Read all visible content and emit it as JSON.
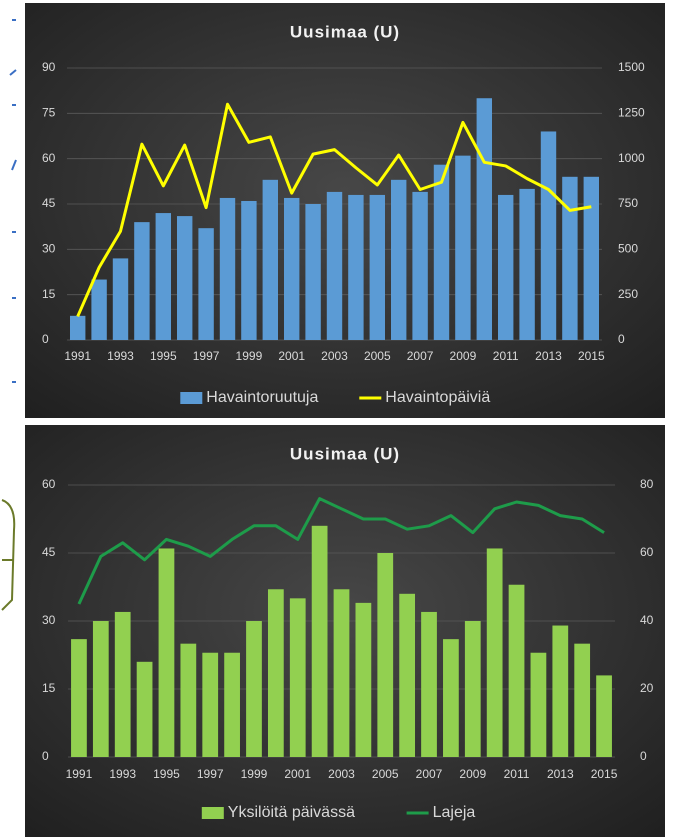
{
  "chart_data": [
    {
      "type": "bar",
      "title": "Uusimaa  (U)",
      "categories": [
        "1991",
        null,
        "1993",
        null,
        "1995",
        null,
        "1997",
        null,
        "1999",
        null,
        "2001",
        null,
        "2003",
        null,
        "2005",
        null,
        "2007",
        null,
        "2009",
        null,
        "2011",
        null,
        "2013",
        null,
        "2015"
      ],
      "series": [
        {
          "name": "Havaintoruutuja",
          "color": "#5b9bd5",
          "type": "bar",
          "values": [
            8,
            20,
            27,
            39,
            42,
            41,
            37,
            47,
            46,
            53,
            47,
            45,
            49,
            48,
            48,
            53,
            49,
            58,
            61,
            80,
            48,
            50,
            69,
            54,
            54
          ]
        },
        {
          "name": "Havaintopäiviä",
          "color": "#ffff00",
          "type": "line",
          "axis": "y2",
          "values": [
            130,
            400,
            600,
            1080,
            850,
            1075,
            730,
            1300,
            1090,
            1120,
            810,
            1025,
            1050,
            950,
            855,
            1020,
            830,
            870,
            1200,
            980,
            960,
            890,
            830,
            715,
            735
          ]
        }
      ],
      "ylim": [
        0,
        90
      ],
      "yticks": [
        0,
        15,
        30,
        45,
        60,
        75,
        90
      ],
      "y2lim": [
        0,
        1500
      ],
      "y2ticks": [
        0,
        250,
        500,
        750,
        1000,
        1250,
        1500
      ],
      "grid": true,
      "legend": "bottom"
    },
    {
      "type": "bar",
      "title": "Uusimaa  (U)",
      "categories": [
        "1991",
        null,
        "1993",
        null,
        "1995",
        null,
        "1997",
        null,
        "1999",
        null,
        "2001",
        null,
        "2003",
        null,
        "2005",
        null,
        "2007",
        null,
        "2009",
        null,
        "2011",
        null,
        "2013",
        null,
        "2015"
      ],
      "series": [
        {
          "name": "Yksilöitä päivässä",
          "color": "#92d050",
          "type": "bar",
          "values": [
            26,
            30,
            32,
            21,
            46,
            25,
            23,
            23,
            30,
            37,
            35,
            51,
            37,
            34,
            45,
            36,
            32,
            26,
            30,
            46,
            38,
            23,
            29,
            25,
            18
          ]
        },
        {
          "name": "Lajeja",
          "color": "#1e9c4a",
          "type": "line",
          "axis": "y2",
          "values": [
            45,
            59,
            63,
            58,
            64,
            62,
            59,
            64,
            68,
            68,
            64,
            76,
            73,
            70,
            70,
            67,
            68,
            71,
            66,
            73,
            75,
            74,
            71,
            70,
            66
          ]
        }
      ],
      "ylim": [
        0,
        60
      ],
      "yticks": [
        0,
        15,
        30,
        45,
        60
      ],
      "y2lim": [
        0,
        80
      ],
      "y2ticks": [
        0,
        20,
        40,
        60,
        80
      ],
      "grid": true,
      "legend": "bottom"
    }
  ]
}
